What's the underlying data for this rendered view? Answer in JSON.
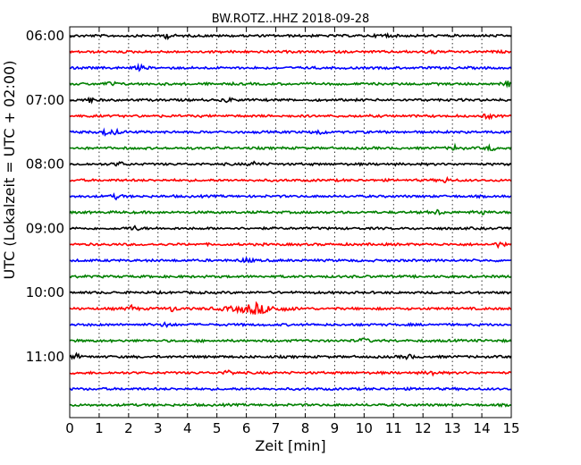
{
  "chart_data": {
    "type": "line",
    "title": "BW.ROTZ..HHZ 2018-09-28",
    "xlabel": "Zeit  [min]",
    "ylabel": "UTC (Lokalzeit = UTC + 02:00)",
    "xlim": [
      0,
      15
    ],
    "x_ticks": [
      "0",
      "1",
      "2",
      "3",
      "4",
      "5",
      "6",
      "7",
      "8",
      "9",
      "10",
      "11",
      "12",
      "13",
      "14",
      "15"
    ],
    "y_ticks": [
      "06:00",
      "07:00",
      "08:00",
      "09:00",
      "10:00",
      "11:00"
    ],
    "grid": "x-dotted",
    "trace_minutes": 15,
    "traces_per_hour": 4,
    "colors": [
      "#000000",
      "#ff0000",
      "#0000ff",
      "#008000"
    ],
    "series": [
      {
        "start": "06:00",
        "events_min": [
          3.3,
          10.7
        ]
      },
      {
        "start": "06:15",
        "events_min": [
          12.3
        ]
      },
      {
        "start": "06:30",
        "events_min": [
          2.4
        ]
      },
      {
        "start": "06:45",
        "events_min": [
          1.4,
          14.9
        ]
      },
      {
        "start": "07:00",
        "events_min": [
          0.7,
          5.4
        ]
      },
      {
        "start": "07:15",
        "events_min": [
          14.2
        ]
      },
      {
        "start": "07:30",
        "events_min": [
          1.2,
          1.6,
          8.5
        ]
      },
      {
        "start": "07:45",
        "events_min": [
          13.1,
          14.3
        ]
      },
      {
        "start": "08:00",
        "events_min": [
          1.7,
          6.3
        ]
      },
      {
        "start": "08:15",
        "events_min": [
          12.8
        ]
      },
      {
        "start": "08:30",
        "events_min": [
          1.6
        ]
      },
      {
        "start": "08:45",
        "events_min": [
          12.5,
          14.0
        ]
      },
      {
        "start": "09:00",
        "events_min": [
          2.2
        ]
      },
      {
        "start": "09:15",
        "events_min": [
          14.6
        ]
      },
      {
        "start": "09:30",
        "events_min": [
          6.0
        ]
      },
      {
        "start": "09:45",
        "events_min": []
      },
      {
        "start": "10:00",
        "events_min": []
      },
      {
        "start": "10:15",
        "events_min": [
          2.1,
          3.5,
          6.3
        ]
      },
      {
        "start": "10:30",
        "events_min": [
          3.3
        ]
      },
      {
        "start": "10:45",
        "events_min": [
          10.0
        ]
      },
      {
        "start": "11:00",
        "events_min": [
          0.2,
          11.5
        ]
      },
      {
        "start": "11:15",
        "events_min": [
          5.4,
          12.3
        ]
      },
      {
        "start": "11:30",
        "events_min": []
      },
      {
        "start": "11:45",
        "events_min": []
      }
    ]
  }
}
